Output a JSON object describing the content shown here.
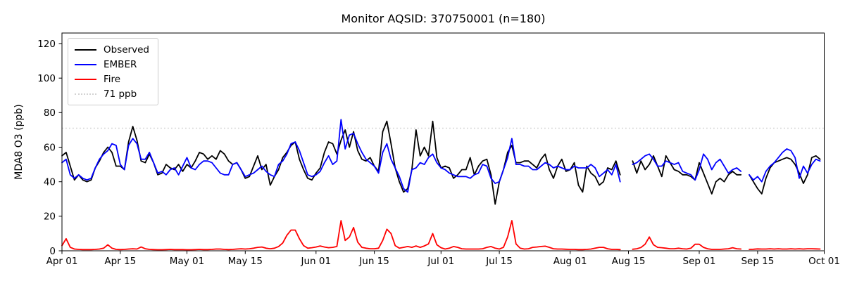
{
  "chart_data": {
    "type": "line",
    "title": "Monitor AQSID: 370750001 (n=180)",
    "ylabel": "MDA8 O3 (ppb)",
    "xlabel": "",
    "n_points": 180,
    "ylim": [
      0,
      126
    ],
    "yticks": [
      0,
      20,
      40,
      60,
      80,
      100,
      120
    ],
    "x_total_days": 183,
    "x_start": "Apr 01",
    "x_end": "Oct 01",
    "grid": false,
    "legend_position": "upper-left",
    "xticks": [
      {
        "day": 0,
        "label": "Apr 01"
      },
      {
        "day": 14,
        "label": "Apr 15"
      },
      {
        "day": 30,
        "label": "May 01"
      },
      {
        "day": 44,
        "label": "May 15"
      },
      {
        "day": 61,
        "label": "Jun 01"
      },
      {
        "day": 75,
        "label": "Jun 15"
      },
      {
        "day": 91,
        "label": "Jul 01"
      },
      {
        "day": 105,
        "label": "Jul 15"
      },
      {
        "day": 122,
        "label": "Aug 01"
      },
      {
        "day": 136,
        "label": "Aug 15"
      },
      {
        "day": 153,
        "label": "Sep 01"
      },
      {
        "day": 167,
        "label": "Sep 15"
      },
      {
        "day": 183,
        "label": "Oct 01"
      }
    ],
    "threshold": {
      "value": 71,
      "label": "71 ppb",
      "color": "#d3d3d3",
      "style": "dotted"
    },
    "series": [
      {
        "name": "Observed",
        "color": "#000000",
        "values": [
          55,
          57,
          49,
          41,
          44,
          41,
          40,
          41,
          48,
          52,
          57,
          60,
          57,
          49,
          49,
          47,
          63,
          72,
          64,
          52,
          51,
          56,
          51,
          44,
          45,
          50,
          48,
          47,
          50,
          46,
          50,
          48,
          52,
          57,
          56,
          53,
          55,
          53,
          58,
          56,
          52,
          50,
          51,
          47,
          42,
          43,
          49,
          55,
          47,
          50,
          38,
          43,
          47,
          54,
          57,
          61,
          63,
          53,
          47,
          42,
          41,
          45,
          48,
          57,
          63,
          62,
          56,
          64,
          70,
          60,
          69,
          58,
          53,
          52,
          54,
          49,
          46,
          69,
          75,
          62,
          48,
          40,
          34,
          36,
          47,
          70,
          55,
          60,
          55,
          75,
          54,
          48,
          49,
          48,
          42,
          44,
          47,
          47,
          54,
          44,
          49,
          52,
          53,
          44,
          27,
          40,
          47,
          57,
          61,
          51,
          51,
          52,
          52,
          50,
          48,
          53,
          56,
          47,
          42,
          49,
          53,
          46,
          47,
          51,
          38,
          34,
          49,
          45,
          43,
          38,
          40,
          48,
          47,
          52,
          44,
          null,
          null,
          52,
          45,
          52,
          47,
          50,
          55,
          49,
          43,
          55,
          51,
          47,
          46,
          44,
          44,
          43,
          41,
          51,
          45,
          39,
          33,
          40,
          42,
          40,
          44,
          46,
          44,
          44,
          null,
          44,
          40,
          36,
          33,
          42,
          48,
          51,
          52,
          53,
          54,
          53,
          50,
          45,
          39,
          44,
          54,
          55,
          53
        ]
      },
      {
        "name": "EMBER",
        "color": "#0000ff",
        "values": [
          51,
          53,
          44,
          42,
          44,
          42,
          41,
          42,
          48,
          53,
          56,
          58,
          62,
          61,
          50,
          47,
          61,
          65,
          62,
          53,
          53,
          57,
          51,
          45,
          46,
          44,
          47,
          48,
          44,
          49,
          54,
          48,
          47,
          50,
          52,
          52,
          51,
          48,
          45,
          44,
          44,
          50,
          51,
          47,
          43,
          44,
          45,
          47,
          49,
          46,
          44,
          43,
          50,
          52,
          56,
          62,
          63,
          58,
          51,
          44,
          43,
          44,
          46,
          51,
          55,
          50,
          52,
          76,
          59,
          67,
          68,
          62,
          57,
          53,
          51,
          49,
          45,
          57,
          62,
          53,
          48,
          43,
          36,
          34,
          47,
          48,
          51,
          50,
          54,
          56,
          51,
          48,
          47,
          45,
          44,
          43,
          43,
          43,
          42,
          44,
          45,
          50,
          49,
          42,
          39,
          40,
          47,
          54,
          65,
          50,
          50,
          49,
          49,
          47,
          47,
          49,
          51,
          50,
          48,
          49,
          48,
          47,
          47,
          49,
          48,
          48,
          48,
          50,
          48,
          43,
          45,
          47,
          44,
          50,
          40,
          null,
          null,
          50,
          51,
          53,
          55,
          56,
          53,
          49,
          49,
          52,
          51,
          50,
          51,
          46,
          45,
          44,
          41,
          47,
          56,
          53,
          47,
          51,
          53,
          49,
          45,
          47,
          48,
          46,
          null,
          44,
          41,
          43,
          40,
          46,
          49,
          51,
          54,
          57,
          59,
          58,
          54,
          42,
          49,
          45,
          50,
          53,
          52
        ]
      },
      {
        "name": "Fire",
        "color": "#ff0000",
        "values": [
          3,
          7,
          2,
          1,
          0.8,
          0.7,
          0.7,
          0.7,
          0.8,
          1,
          1.5,
          3.5,
          1.5,
          0.8,
          0.7,
          0.8,
          1,
          1.2,
          1,
          2.2,
          1.2,
          0.8,
          0.7,
          0.6,
          0.6,
          0.7,
          0.8,
          0.7,
          0.7,
          0.7,
          0.6,
          0.6,
          0.7,
          0.8,
          0.7,
          0.7,
          0.8,
          1,
          1,
          0.8,
          0.7,
          0.8,
          1,
          1.2,
          1,
          1.2,
          1.5,
          2,
          2.2,
          1.5,
          1.2,
          1.5,
          2.5,
          4.5,
          9,
          12,
          12,
          7,
          3,
          1.5,
          1.8,
          2.2,
          2.8,
          2.2,
          1.8,
          2,
          2.5,
          17.5,
          6,
          8,
          13.5,
          5,
          2,
          1.5,
          1.2,
          1.2,
          1.5,
          6,
          12.5,
          10,
          3,
          1.5,
          2,
          2.5,
          2,
          2.8,
          2,
          2.8,
          4,
          10,
          3.5,
          1.8,
          1,
          1.5,
          2.5,
          2,
          1.2,
          1,
          1,
          1,
          1,
          1.2,
          2,
          2.5,
          1.5,
          1,
          2,
          8,
          17.5,
          4,
          1.5,
          1,
          1.2,
          2,
          2.2,
          2.5,
          2.7,
          2,
          1.2,
          1,
          1,
          0.9,
          0.8,
          0.8,
          0.7,
          0.7,
          0.8,
          1,
          1.5,
          2,
          2,
          1.2,
          0.8,
          0.8,
          0.7,
          null,
          null,
          0.9,
          1.2,
          1.9,
          3.8,
          8,
          3.5,
          2,
          1.8,
          1.5,
          1.2,
          1.2,
          1.5,
          1.2,
          1,
          1.5,
          3.8,
          3.8,
          2,
          1.2,
          0.8,
          0.8,
          0.8,
          1,
          1.2,
          1.8,
          1.2,
          1,
          null,
          0.8,
          0.9,
          1.1,
          1,
          1,
          1.2,
          1,
          1.2,
          1,
          1,
          1.2,
          1,
          1.2,
          1,
          1.2,
          1.2,
          1.1,
          1
        ]
      }
    ],
    "colors": {
      "axis": "#000000",
      "background": "#ffffff",
      "tick_label": "#000000"
    }
  }
}
